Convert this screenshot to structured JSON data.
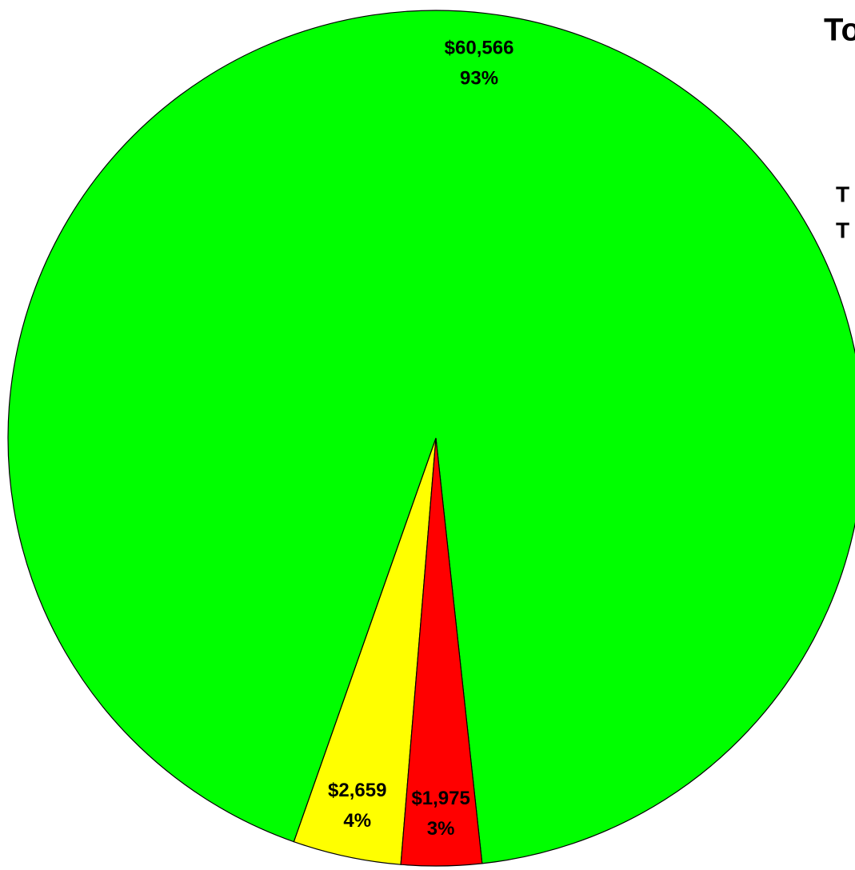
{
  "chart_data": {
    "type": "pie",
    "title": "To",
    "side_labels": [
      "T",
      "T"
    ],
    "values": [
      60566,
      2659,
      1975
    ],
    "value_labels": [
      "$60,566",
      "$2,659",
      "$1,975"
    ],
    "percent_labels": [
      "93%",
      "4%",
      "3%"
    ],
    "colors": [
      "#00ff00",
      "#ffff00",
      "#ff0000"
    ]
  }
}
